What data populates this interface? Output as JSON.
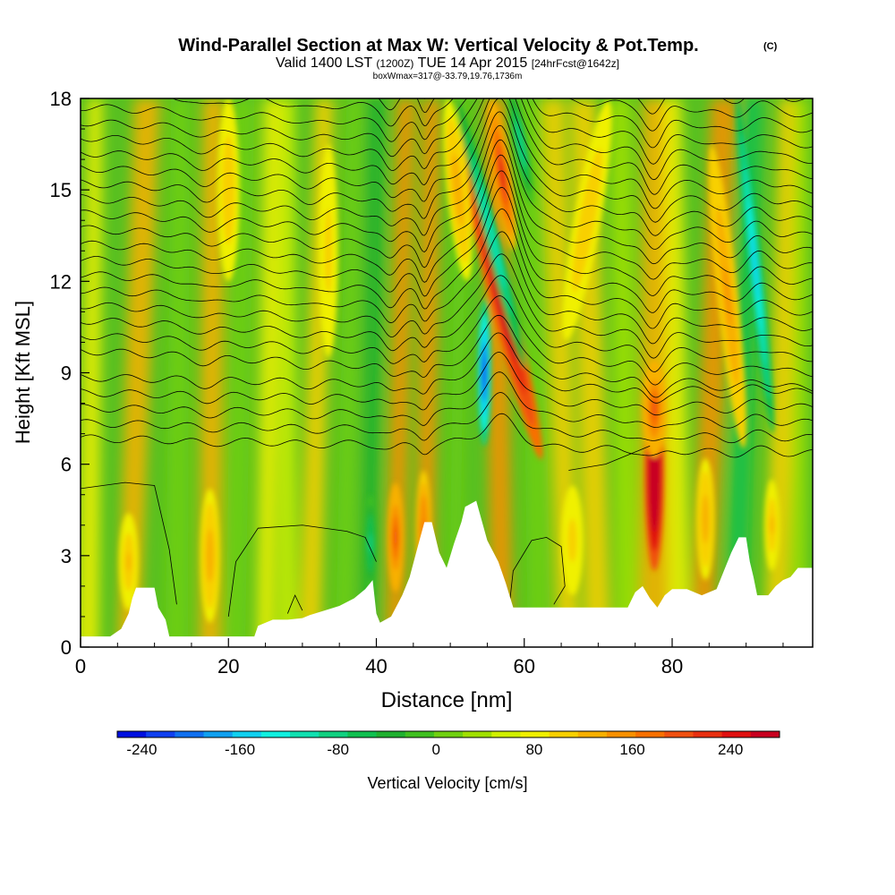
{
  "title": {
    "main": "Wind-Parallel Section at Max W: Vertical Velocity & Pot.Temp.",
    "copyright": "(C)",
    "valid_prefix": "Valid 1400 LST",
    "valid_z": "(1200Z)",
    "valid_date": "TUE 14 Apr 2015",
    "forecast": "[24hrFcst@1642z]",
    "box_info": "boxWmax=317@-33.79,19.76,1736m"
  },
  "chart_data": {
    "type": "heatmap",
    "subtype": "vertical cross-section, filled contours with potential temperature isolines",
    "xlabel": "Distance [nm]",
    "ylabel": "Height [Kft MSL]",
    "xlim": [
      0,
      99
    ],
    "ylim": [
      0,
      18
    ],
    "xticks": [
      0,
      20,
      40,
      60,
      80
    ],
    "yticks": [
      0,
      3,
      6,
      9,
      12,
      15,
      18
    ],
    "colorbar": {
      "label": "Vertical Velocity [cm/s]",
      "min": -260,
      "max": 280,
      "step": 20,
      "tick_values": [
        -240,
        -160,
        -80,
        0,
        80,
        160,
        240
      ],
      "colors": [
        "#0010e0",
        "#1040f0",
        "#1070f0",
        "#10a0f0",
        "#10d0f0",
        "#10f0e0",
        "#10e0b0",
        "#10d080",
        "#10c050",
        "#20b030",
        "#40c020",
        "#70d010",
        "#a0e000",
        "#d0f000",
        "#f0f000",
        "#f8d000",
        "#f8b000",
        "#f89000",
        "#f87000",
        "#f05010",
        "#e83010",
        "#e01010",
        "#c80020"
      ]
    },
    "updrafts": [
      {
        "x": 77.5,
        "y_center": 5.5,
        "w_peak": 270
      },
      {
        "x": 56.5,
        "y_center": 11.0,
        "w_peak": 200
      },
      {
        "x": 42.5,
        "y_center": 3.5,
        "w_peak": 120
      },
      {
        "x": 46.5,
        "y_center": 3.5,
        "w_peak": 110
      },
      {
        "x": 17.5,
        "y_center": 3.0,
        "w_peak": 70
      },
      {
        "x": 6.5,
        "y_center": 3.0,
        "w_peak": 65
      },
      {
        "x": 88.0,
        "y_center": 11.0,
        "w_peak": 90
      }
    ],
    "downdrafts": [
      {
        "x": 54.5,
        "y_center": 8.5,
        "w_peak": -240
      },
      {
        "x": 91.0,
        "y_center": 12.0,
        "w_peak": -170
      },
      {
        "x": 58.5,
        "y_center": 14.0,
        "w_peak": -150
      },
      {
        "x": 39.0,
        "y_center": 3.5,
        "w_peak": -110
      }
    ],
    "terrain_kft": [
      [
        0,
        0.35
      ],
      [
        4,
        0.35
      ],
      [
        5.5,
        0.6
      ],
      [
        6.5,
        1.1
      ],
      [
        7,
        1.6
      ],
      [
        7.5,
        1.95
      ],
      [
        10,
        1.95
      ],
      [
        10.5,
        1.3
      ],
      [
        11.5,
        0.9
      ],
      [
        12,
        0.35
      ],
      [
        14,
        0.35
      ],
      [
        18,
        0.35
      ],
      [
        21,
        0.35
      ],
      [
        23.5,
        0.35
      ],
      [
        24,
        0.7
      ],
      [
        26,
        0.9
      ],
      [
        28,
        0.9
      ],
      [
        30,
        0.95
      ],
      [
        31,
        1.05
      ],
      [
        33,
        1.2
      ],
      [
        35,
        1.35
      ],
      [
        37,
        1.6
      ],
      [
        38.5,
        1.9
      ],
      [
        39.5,
        2.2
      ],
      [
        40,
        1.1
      ],
      [
        40.5,
        0.8
      ],
      [
        42,
        1.0
      ],
      [
        43.5,
        1.7
      ],
      [
        44.5,
        2.3
      ],
      [
        45.5,
        3.2
      ],
      [
        46.5,
        4.1
      ],
      [
        47.5,
        4.1
      ],
      [
        48.5,
        3.1
      ],
      [
        49.5,
        2.6
      ],
      [
        50.5,
        3.4
      ],
      [
        51.5,
        4.1
      ],
      [
        52,
        4.6
      ],
      [
        53.5,
        4.8
      ],
      [
        55,
        3.5
      ],
      [
        56.5,
        2.8
      ],
      [
        57.5,
        2.1
      ],
      [
        58.5,
        1.3
      ],
      [
        60,
        1.3
      ],
      [
        64,
        1.3
      ],
      [
        70,
        1.3
      ],
      [
        74,
        1.3
      ],
      [
        75,
        1.8
      ],
      [
        76,
        2.0
      ],
      [
        77,
        1.6
      ],
      [
        78,
        1.3
      ],
      [
        79,
        1.7
      ],
      [
        80,
        1.9
      ],
      [
        82,
        1.9
      ],
      [
        84,
        1.7
      ],
      [
        86,
        1.9
      ],
      [
        87,
        2.5
      ],
      [
        88,
        3.1
      ],
      [
        89,
        3.6
      ],
      [
        90,
        3.6
      ],
      [
        90.5,
        2.8
      ],
      [
        91,
        2.3
      ],
      [
        91.5,
        1.7
      ],
      [
        93,
        1.7
      ],
      [
        94,
        2.0
      ],
      [
        95,
        2.2
      ],
      [
        96,
        2.3
      ],
      [
        97,
        2.6
      ],
      [
        99,
        2.6
      ]
    ],
    "theta_contour_count": 26
  }
}
